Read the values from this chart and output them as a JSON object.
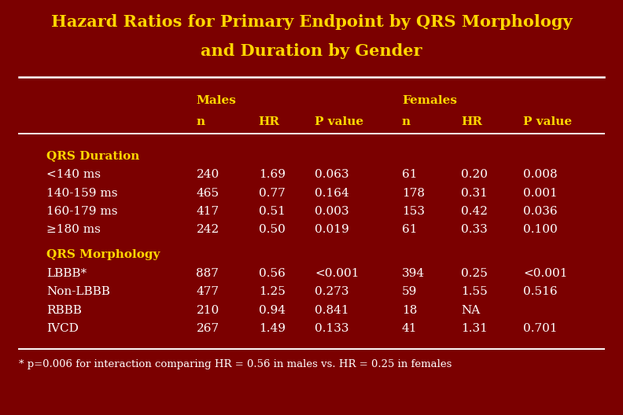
{
  "title_line1": "Hazard Ratios for Primary Endpoint by QRS Morphology",
  "title_line2": "and Duration by Gender",
  "title_color": "#FFD700",
  "background_color": "#7B0000",
  "text_color": "#FFFFFF",
  "yellow_color": "#FFD700",
  "footnote": "* p=0.006 for interaction comparing HR = 0.56 in males vs. HR = 0.25 in females",
  "section1_label": "QRS Duration",
  "section1_rows": [
    [
      "<140 ms",
      "240",
      "1.69",
      "0.063",
      "61",
      "0.20",
      "0.008"
    ],
    [
      "140-159 ms",
      "465",
      "0.77",
      "0.164",
      "178",
      "0.31",
      "0.001"
    ],
    [
      "160-179 ms",
      "417",
      "0.51",
      "0.003",
      "153",
      "0.42",
      "0.036"
    ],
    [
      "≥180 ms",
      "242",
      "0.50",
      "0.019",
      "61",
      "0.33",
      "0.100"
    ]
  ],
  "section2_label": "QRS Morphology",
  "section2_rows": [
    [
      "LBBB*",
      "887",
      "0.56",
      "<0.001",
      "394",
      "0.25",
      "<0.001"
    ],
    [
      "Non-LBBB",
      "477",
      "1.25",
      "0.273",
      "59",
      "1.55",
      "0.516"
    ],
    [
      "RBBB",
      "210",
      "0.94",
      "0.841",
      "18",
      "NA",
      ""
    ],
    [
      "IVCD",
      "267",
      "1.49",
      "0.133",
      "41",
      "1.31",
      "0.701"
    ]
  ],
  "col_x": {
    "row_label": 0.075,
    "m_n": 0.315,
    "m_hr": 0.415,
    "m_pval": 0.505,
    "f_n": 0.645,
    "f_hr": 0.74,
    "f_pval": 0.84
  },
  "title_fontsize": 15,
  "header_fontsize": 11,
  "body_fontsize": 11,
  "footnote_fontsize": 9.5
}
